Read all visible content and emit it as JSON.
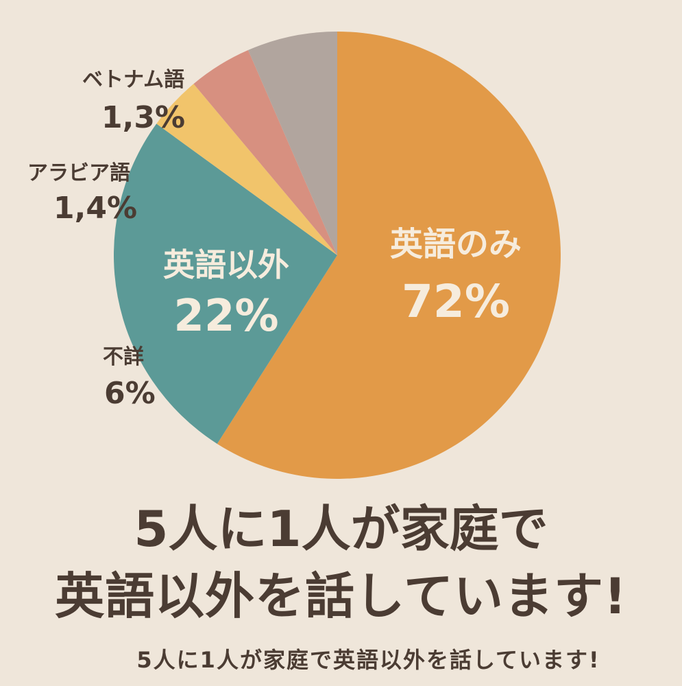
{
  "chart_data": {
    "type": "pie",
    "title": "5人に1人が家庭で英語以外を話しています!",
    "slices": [
      {
        "label": "英語のみ",
        "value_label": "72%",
        "value": 72,
        "color": "#e29a48",
        "label_color": "#f6ecdd"
      },
      {
        "label": "英語以外",
        "value_label": "22%",
        "value": 22,
        "color": "#5c9a97",
        "label_color": "#f6ecdd"
      },
      {
        "label": "アラビア語",
        "value_label": "1,4%",
        "value": 1.4,
        "color": "#f1c46b",
        "label_color": "#4b3c33"
      },
      {
        "label": "ベトナム語",
        "value_label": "1,3%",
        "value": 1.3,
        "color": "#d79080",
        "label_color": "#4b3c33"
      },
      {
        "label": "不詳",
        "value_label": "6%",
        "value": 6,
        "color": "#b1a59e",
        "label_color": "#4b3c33"
      }
    ]
  },
  "headline": {
    "line1": "5人に1人が家庭で",
    "line2": "英語以外を話しています!"
  },
  "subtitle": "5人に1人が家庭で英語以外を話しています!",
  "colors": {
    "background": "#efe6da",
    "text": "#4b3c33"
  }
}
